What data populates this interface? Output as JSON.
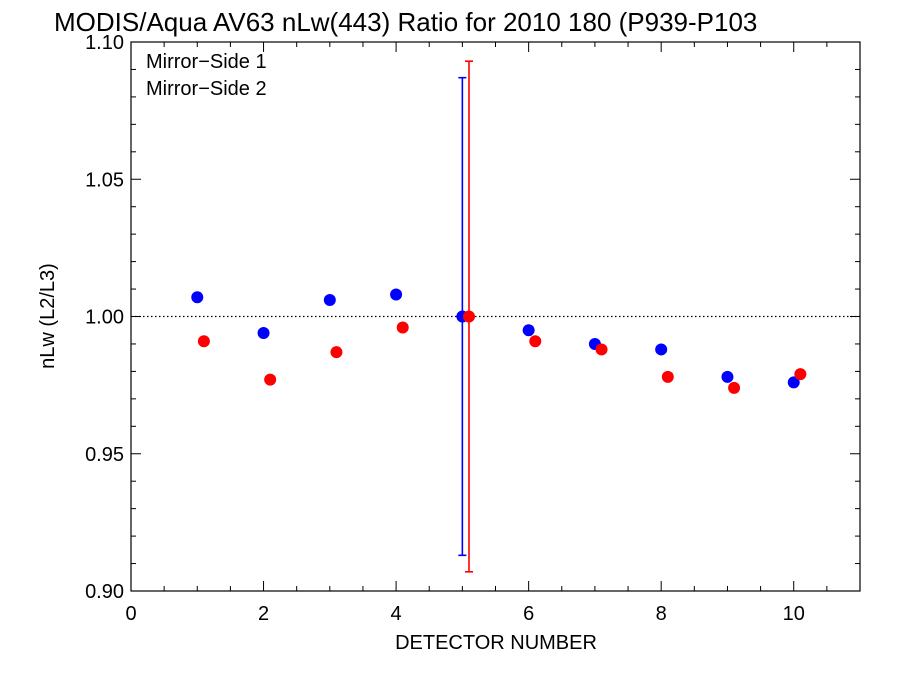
{
  "chart_data": {
    "type": "scatter",
    "title": "MODIS/Aqua AV63 nLw(443) Ratio for 2010 180 (P939-P103",
    "xlabel": "DETECTOR NUMBER",
    "ylabel": "nLw (L2/L3)",
    "xlim": [
      0,
      11
    ],
    "ylim": [
      0.9,
      1.1
    ],
    "xticks": [
      "0",
      "2",
      "4",
      "6",
      "8",
      "10"
    ],
    "yticks": [
      "0.90",
      "0.95",
      "1.00",
      "1.05",
      "1.10"
    ],
    "reference_line": 1.0,
    "legend_position": "top-left",
    "series": [
      {
        "name": "Mirror−Side 1",
        "color": "#0000ff",
        "x": [
          1,
          2,
          3,
          4,
          5,
          6,
          7,
          8,
          9,
          10
        ],
        "y": [
          1.007,
          0.994,
          1.006,
          1.008,
          1.0,
          0.995,
          0.99,
          0.988,
          0.978,
          0.976
        ],
        "error_bars": [
          {
            "x": 5,
            "low": 0.913,
            "high": 1.087
          }
        ]
      },
      {
        "name": "Mirror−Side 2",
        "color": "#ff0000",
        "x": [
          1.1,
          2.1,
          3.1,
          4.1,
          5.1,
          6.1,
          7.1,
          8.1,
          9.1,
          10.1
        ],
        "y": [
          0.991,
          0.977,
          0.987,
          0.996,
          1.0,
          0.991,
          0.988,
          0.978,
          0.974,
          0.979
        ],
        "error_bars": [
          {
            "x": 5.1,
            "low": 0.907,
            "high": 1.093
          }
        ]
      }
    ]
  }
}
